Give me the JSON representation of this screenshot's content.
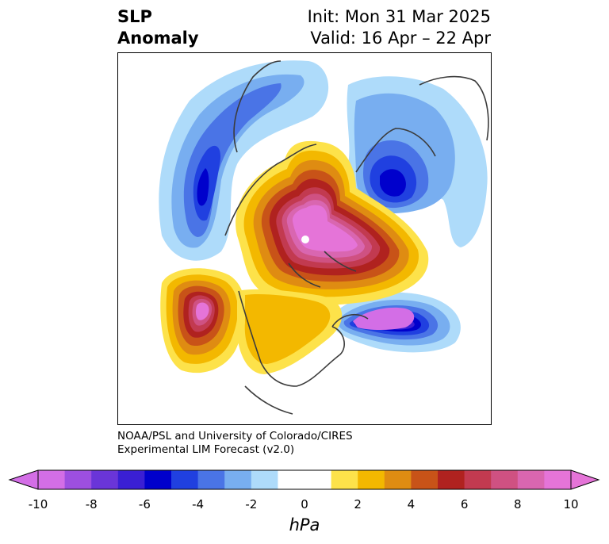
{
  "header": {
    "title_line1": "SLP",
    "title_line2": "Anomaly",
    "init_text": "Init: Mon 31 Mar 2025",
    "valid_text": "Valid: 16 Apr – 22 Apr"
  },
  "credit": {
    "line1": "NOAA/PSL and University of Colorado/CIRES",
    "line2": "Experimental LIM Forecast (v2.0)"
  },
  "colorbar": {
    "unit_label": "hPa",
    "tick_labels": [
      "-10",
      "-8",
      "-6",
      "-4",
      "-2",
      "0",
      "2",
      "4",
      "6",
      "8",
      "10"
    ],
    "colors": [
      "#d36ee6",
      "#9d4fe0",
      "#6a35d8",
      "#3a1fd4",
      "#0000cc",
      "#2040e0",
      "#4a74e6",
      "#78aef0",
      "#aedbfa",
      "#ffffff",
      "#ffffff",
      "#fde24a",
      "#f3b800",
      "#df8c12",
      "#c85318",
      "#b0221f",
      "#c23a50",
      "#cf5182",
      "#d966b0",
      "#e574d8"
    ],
    "under_color": "#d36ee6",
    "over_color": "#e574d8"
  },
  "map": {
    "colors": {
      "pos_1": "#fde24a",
      "pos_2": "#f3b800",
      "pos_3": "#df8c12",
      "pos_4": "#c85318",
      "pos_5": "#b0221f",
      "pos_6": "#c23a50",
      "pos_7": "#cf5182",
      "pos_8": "#d966b0",
      "pos_9": "#e574d8",
      "neg_1": "#aedbfa",
      "neg_2": "#78aef0",
      "neg_3": "#4a74e6",
      "neg_4": "#2040e0",
      "neg_5": "#0000cc",
      "neg_6": "#3a1fd4",
      "neg_7": "#6a35d8",
      "neg_8": "#d36ee6",
      "coast": "#3c3c3c"
    }
  }
}
